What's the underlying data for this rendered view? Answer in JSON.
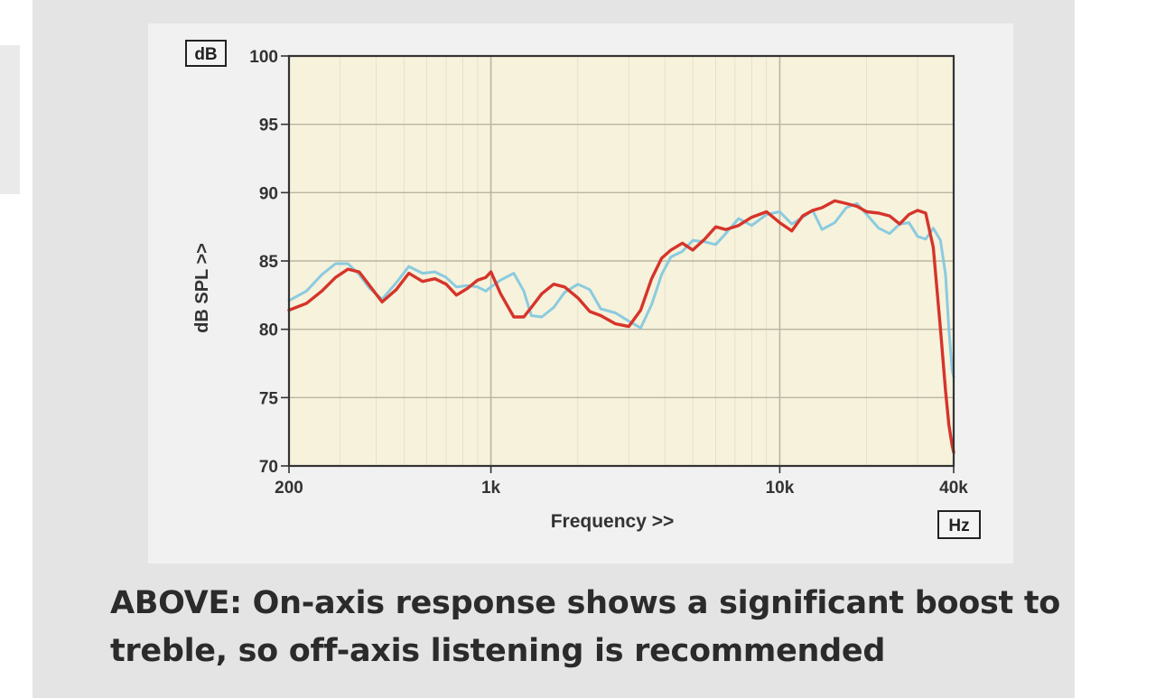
{
  "caption": {
    "line1": "ABOVE: On-axis response shows a significant boost to",
    "line2": "treble, so off-axis listening is recommended"
  },
  "chart_data": {
    "type": "line",
    "x_unit_box": "Hz",
    "y_unit_box": "dB",
    "xlabel": "Frequency >>",
    "ylabel": "dB SPL >>",
    "xscale": "log",
    "xlim": [
      200,
      40000
    ],
    "ylim": [
      70,
      100
    ],
    "x_ticks": [
      {
        "value": 200,
        "label": "200"
      },
      {
        "value": 1000,
        "label": "1k"
      },
      {
        "value": 10000,
        "label": "10k"
      },
      {
        "value": 40000,
        "label": "40k"
      }
    ],
    "y_ticks": [
      {
        "value": 70,
        "label": "70"
      },
      {
        "value": 75,
        "label": "75"
      },
      {
        "value": 80,
        "label": "80"
      },
      {
        "value": 85,
        "label": "85"
      },
      {
        "value": 90,
        "label": "90"
      },
      {
        "value": 95,
        "label": "95"
      },
      {
        "value": 100,
        "label": "100"
      }
    ],
    "grid": true,
    "colors": {
      "background": "#f6f2dc",
      "grid": "#b9b5a2",
      "axis": "#333333",
      "on_axis": "#d6342a",
      "off_axis": "#7fc7df"
    },
    "series": [
      {
        "color": "#7fc7df",
        "x": [
          200,
          230,
          260,
          290,
          320,
          350,
          380,
          420,
          470,
          520,
          580,
          640,
          700,
          760,
          830,
          900,
          960,
          1000,
          1080,
          1200,
          1300,
          1380,
          1500,
          1650,
          1800,
          2000,
          2200,
          2400,
          2700,
          3000,
          3300,
          3600,
          3900,
          4200,
          4600,
          5000,
          5500,
          6000,
          6500,
          7200,
          8000,
          9000,
          10000,
          11000,
          12000,
          13000,
          14000,
          15500,
          17000,
          18500,
          20000,
          22000,
          24000,
          26000,
          28000,
          30000,
          32000,
          34000,
          36000,
          37500,
          38500,
          39500,
          40000
        ],
        "y": [
          82.1,
          82.8,
          84.0,
          84.8,
          84.8,
          84.0,
          83.0,
          82.2,
          83.4,
          84.6,
          84.1,
          84.2,
          83.8,
          83.1,
          83.2,
          83.1,
          82.8,
          83.1,
          83.6,
          84.1,
          82.8,
          81.0,
          80.9,
          81.6,
          82.7,
          83.3,
          82.9,
          81.5,
          81.2,
          80.6,
          80.1,
          81.8,
          84.0,
          85.3,
          85.7,
          86.5,
          86.4,
          86.2,
          87.0,
          88.1,
          87.6,
          88.4,
          88.6,
          87.7,
          88.2,
          88.7,
          87.3,
          87.8,
          88.9,
          89.2,
          88.4,
          87.4,
          87.0,
          87.7,
          87.8,
          86.8,
          86.6,
          87.4,
          86.5,
          84.0,
          80.0,
          77.0,
          76.5
        ]
      },
      {
        "color": "#d6342a",
        "x": [
          200,
          230,
          260,
          290,
          320,
          350,
          380,
          420,
          470,
          520,
          580,
          640,
          700,
          760,
          830,
          900,
          960,
          1000,
          1080,
          1200,
          1300,
          1380,
          1500,
          1650,
          1800,
          2000,
          2200,
          2400,
          2700,
          3000,
          3300,
          3600,
          3900,
          4200,
          4600,
          5000,
          5500,
          6000,
          6500,
          7200,
          8000,
          9000,
          10000,
          11000,
          12000,
          13000,
          14000,
          15500,
          17000,
          18500,
          20000,
          22000,
          24000,
          26000,
          28000,
          30000,
          32000,
          34000,
          36000,
          37500,
          38500,
          39500,
          40000
        ],
        "y": [
          81.4,
          81.9,
          82.8,
          83.8,
          84.4,
          84.2,
          83.2,
          82.0,
          82.9,
          84.1,
          83.5,
          83.7,
          83.3,
          82.5,
          83.0,
          83.6,
          83.8,
          84.2,
          82.6,
          80.9,
          80.9,
          81.6,
          82.6,
          83.3,
          83.1,
          82.3,
          81.3,
          81.0,
          80.4,
          80.2,
          81.4,
          83.7,
          85.2,
          85.8,
          86.3,
          85.8,
          86.6,
          87.5,
          87.3,
          87.6,
          88.2,
          88.6,
          87.8,
          87.2,
          88.3,
          88.7,
          88.9,
          89.4,
          89.2,
          89.0,
          88.6,
          88.5,
          88.3,
          87.7,
          88.4,
          88.7,
          88.5,
          86.0,
          80.0,
          75.5,
          73.0,
          71.5,
          71.0
        ]
      }
    ]
  }
}
